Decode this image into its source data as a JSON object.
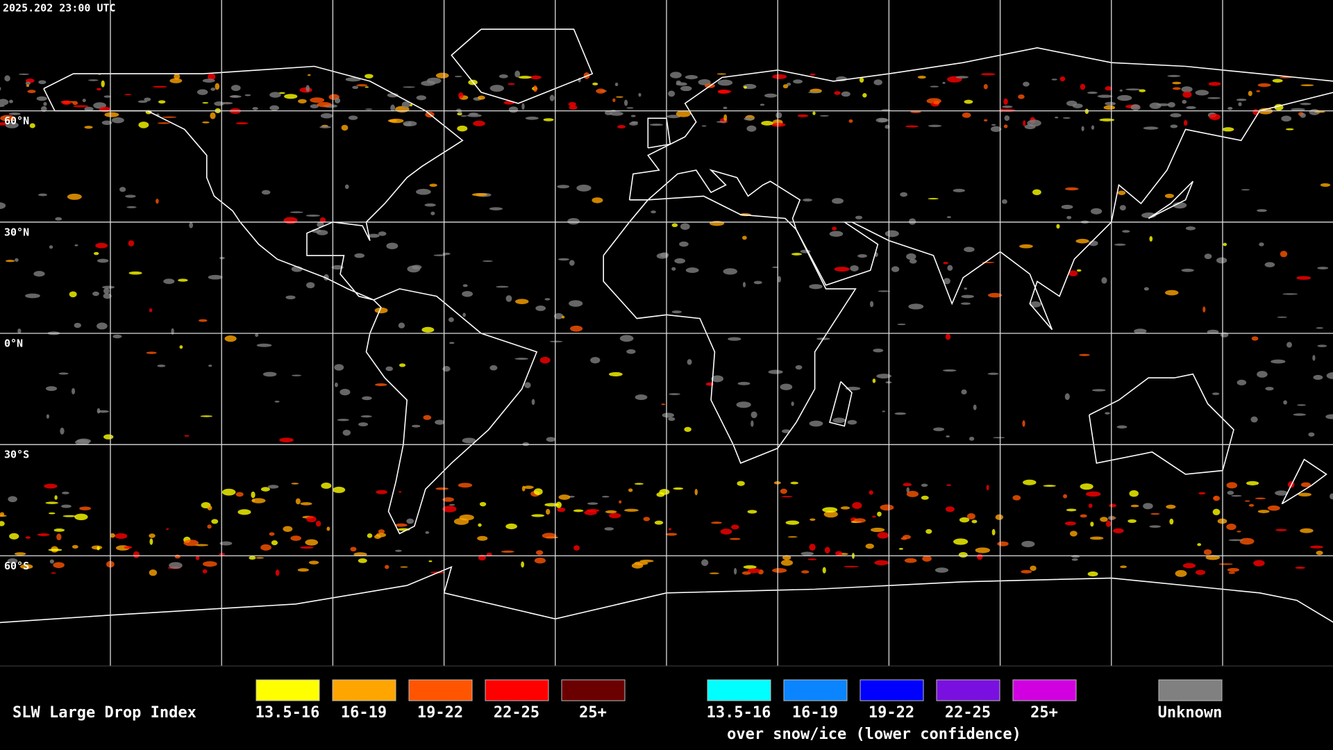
{
  "timestamp": "2025.202 23:00 UTC",
  "lat_labels": [
    "60°N",
    "30°N",
    "0°N",
    "30°S",
    "60°S"
  ],
  "legend": {
    "title": "SLW Large Drop Index",
    "items": [
      {
        "label": "13.5-16",
        "color": "#ffff00"
      },
      {
        "label": "16-19",
        "color": "#ffa500"
      },
      {
        "label": "19-22",
        "color": "#ff5500"
      },
      {
        "label": "22-25",
        "color": "#ff0000"
      },
      {
        "label": "25+",
        "color": "#6b0000"
      }
    ],
    "snow_items": [
      {
        "label": "13.5-16",
        "color": "#00ffff"
      },
      {
        "label": "16-19",
        "color": "#0a84ff"
      },
      {
        "label": "19-22",
        "color": "#0000ff"
      },
      {
        "label": "22-25",
        "color": "#7a10e0"
      },
      {
        "label": "25+",
        "color": "#d000e0"
      }
    ],
    "snow_subtitle": "over snow/ice (lower confidence)",
    "unknown": {
      "label": "Unknown",
      "color": "#808080"
    }
  }
}
